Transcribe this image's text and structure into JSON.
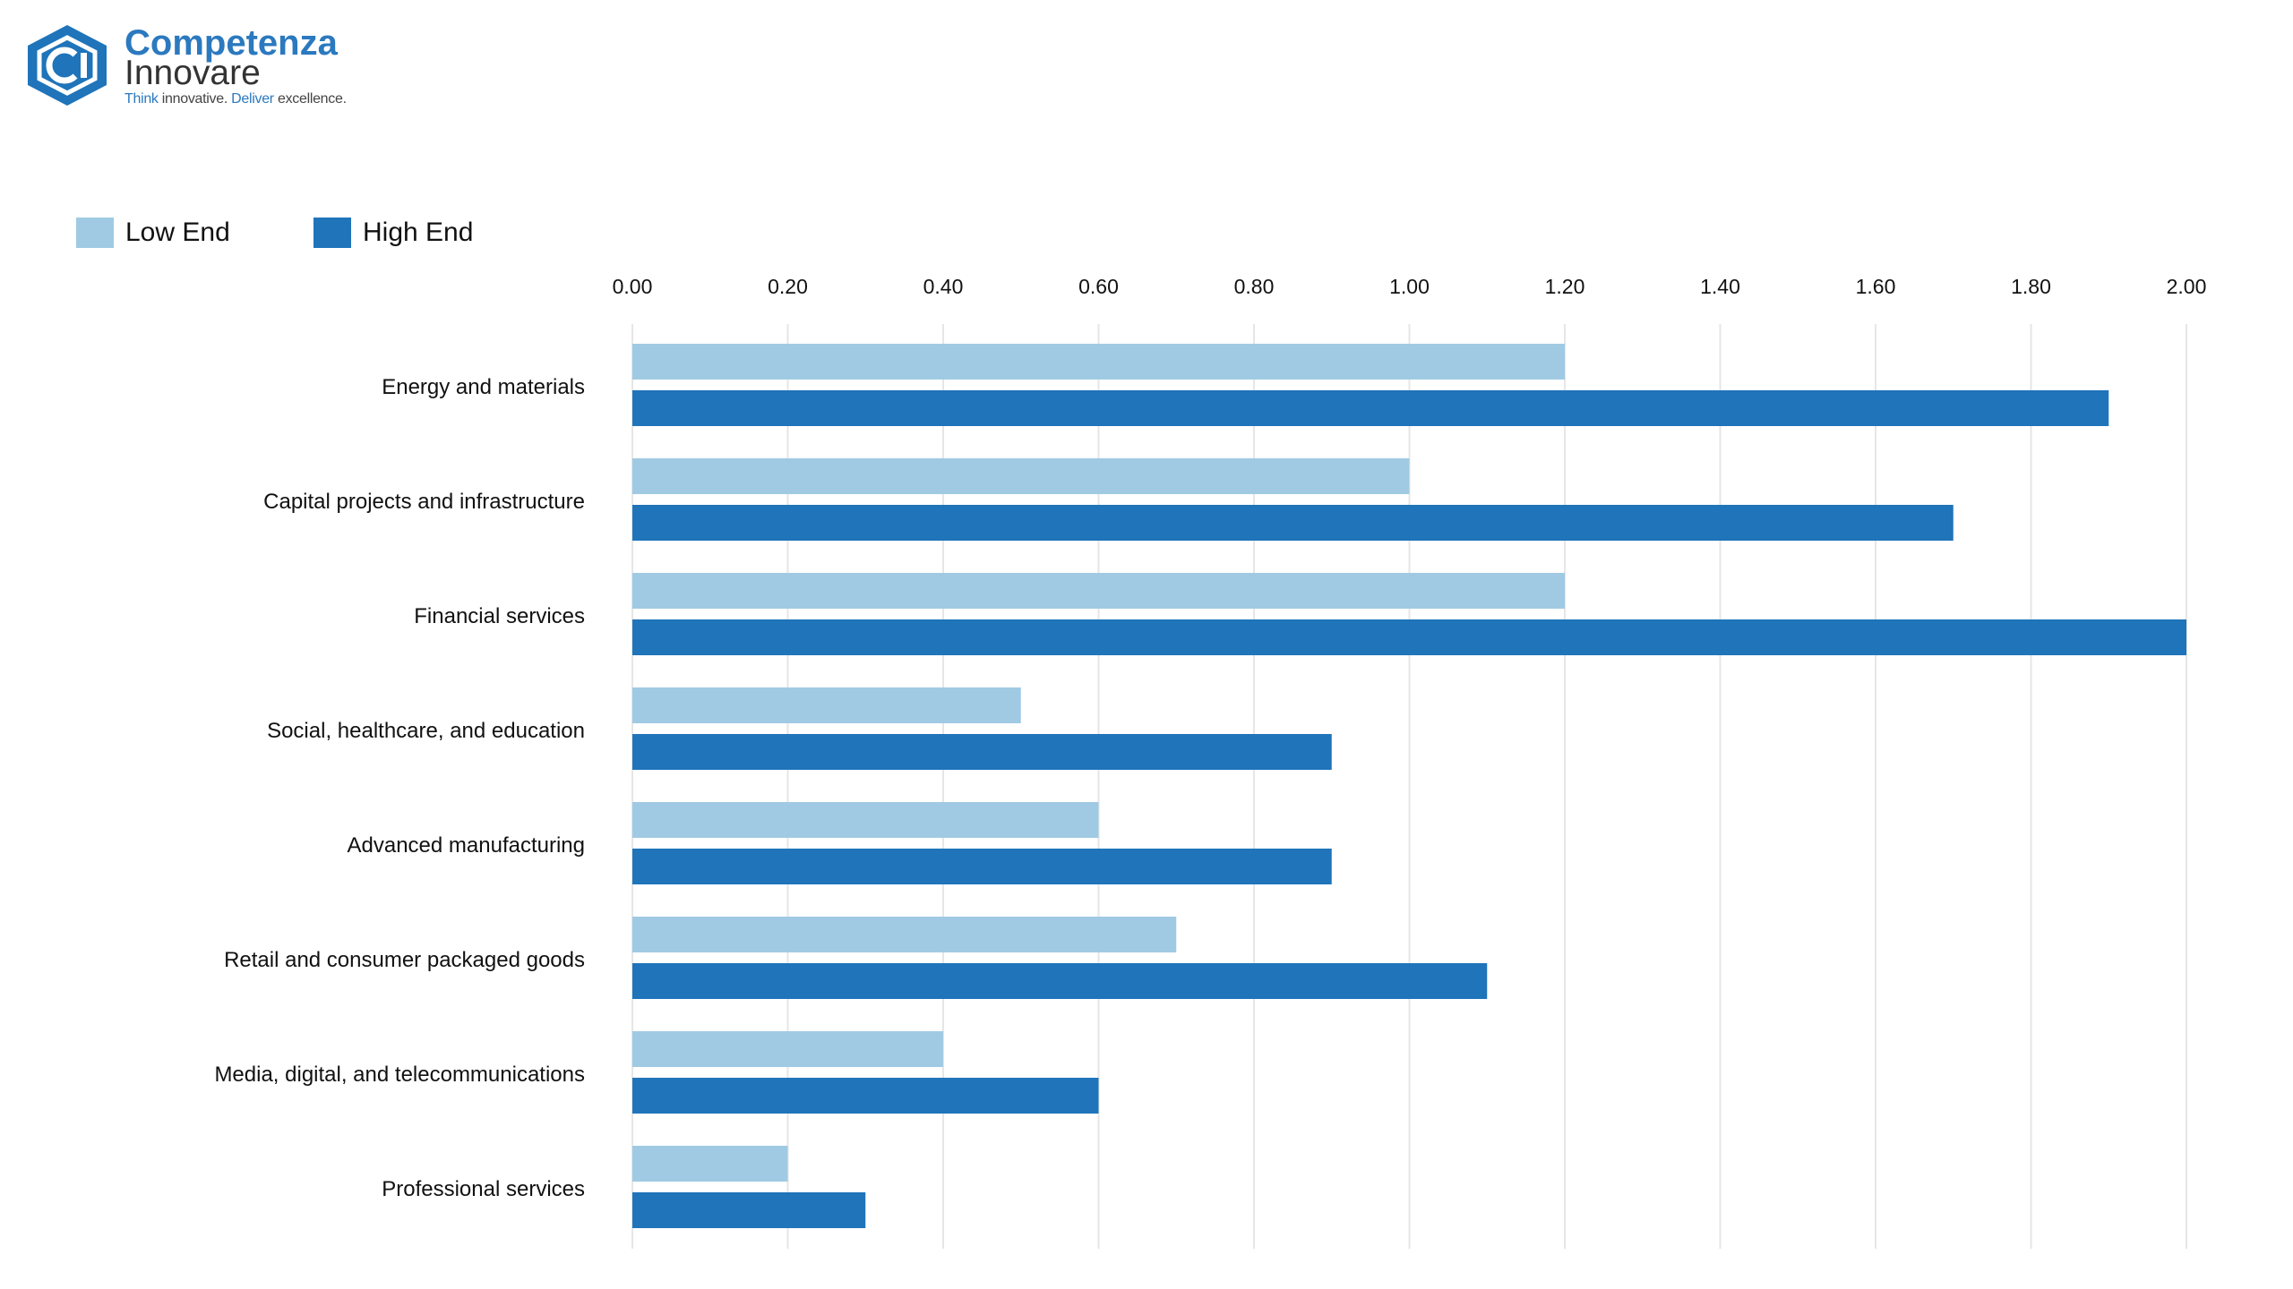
{
  "logo": {
    "name": "Competenza",
    "sub": "Innovare",
    "tagline_1": "Think",
    "tagline_2": " innovative. ",
    "tagline_3": "Deliver",
    "tagline_4": " excellence."
  },
  "colors": {
    "low_end": "#a0cae3",
    "high_end": "#1f74ba",
    "gridline": "#e6e6e6",
    "brand": "#2b79bf"
  },
  "legend": [
    {
      "label": "Low End",
      "color": "#a0cae3"
    },
    {
      "label": "High End",
      "color": "#1f74ba"
    }
  ],
  "chart_data": {
    "type": "bar",
    "orientation": "horizontal",
    "categories": [
      "Energy and materials",
      "Capital projects and infrastructure",
      "Financial services",
      "Social, healthcare, and education",
      "Advanced manufacturing",
      "Retail and consumer packaged goods",
      "Media, digital, and telecommunications",
      "Professional services"
    ],
    "series": [
      {
        "name": "Low End",
        "values": [
          1.2,
          1.0,
          1.2,
          0.5,
          0.6,
          0.7,
          0.4,
          0.2
        ]
      },
      {
        "name": "High End",
        "values": [
          1.9,
          1.7,
          2.0,
          0.9,
          0.9,
          1.1,
          0.6,
          0.3
        ]
      }
    ],
    "xlim": [
      0,
      2
    ],
    "xticks": [
      "0.00",
      "0.20",
      "0.40",
      "0.60",
      "0.80",
      "1.00",
      "1.20",
      "1.40",
      "1.60",
      "1.80",
      "2.00"
    ],
    "axis_position": "top",
    "grid": true,
    "legend_position": "top-left",
    "title": "",
    "xlabel": "",
    "ylabel": ""
  }
}
